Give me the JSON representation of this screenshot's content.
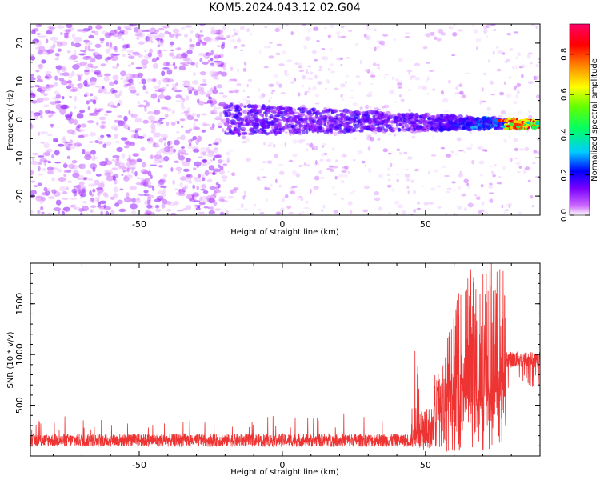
{
  "title": "KOM5.2024.043.12.02.G04",
  "chart_data": [
    {
      "type": "heatmap",
      "xlabel": "Height of straight line (km)",
      "ylabel": "Frequency (Hz)",
      "xlim": [
        -88,
        90
      ],
      "ylim": [
        -25,
        25
      ],
      "x_ticks": [
        -50,
        0,
        50
      ],
      "y_ticks": [
        -20,
        -10,
        0,
        10,
        20
      ],
      "colorbar": {
        "label": "Normalized spectral amplitude",
        "ticks": [
          0.0,
          0.2,
          0.4,
          0.6,
          0.8
        ],
        "range": [
          0,
          0.95
        ],
        "colormap": [
          "#ffffff",
          "#cc66ff",
          "#7a00ff",
          "#0000ff",
          "#00ccff",
          "#00ff66",
          "#66ff00",
          "#ffff00",
          "#ff8800",
          "#ff0000",
          "#ff0066"
        ]
      },
      "signal_band": {
        "x_start": -20,
        "x_end": 90,
        "center_frequency": 0,
        "width_hz_at_start": 8,
        "width_hz_at_end": 2,
        "peak_amplitude": 0.9
      },
      "noise_regions": [
        {
          "x_range": [
            -88,
            -20
          ],
          "description": "dense purple noise"
        },
        {
          "x_range": [
            -20,
            55
          ],
          "description": "sparse light noise"
        }
      ]
    },
    {
      "type": "line",
      "xlabel": "Height of straight line (km)",
      "ylabel": "SNR (10 * v/v)",
      "xlim": [
        -88,
        90
      ],
      "ylim": [
        0,
        1900
      ],
      "x_ticks": [
        -50,
        0,
        50
      ],
      "y_ticks": [
        500,
        1000,
        1500
      ],
      "line_color": "#ee3333",
      "segments": [
        {
          "x": [
            -88,
            45
          ],
          "baseline": 130,
          "amplitude": 130
        },
        {
          "x": [
            45,
            49
          ],
          "spike_max": 1120
        },
        {
          "x": [
            53,
            78
          ],
          "oscillation_min": 50,
          "oscillation_max": 1900
        },
        {
          "x": [
            78,
            90
          ],
          "level": 950,
          "amplitude": 160
        }
      ]
    }
  ]
}
